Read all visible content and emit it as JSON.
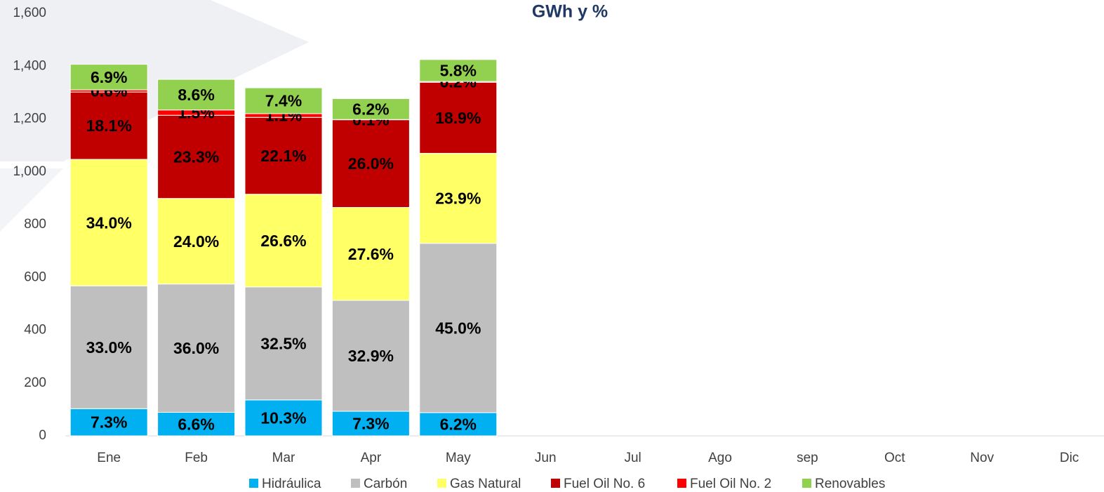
{
  "chart_data": {
    "type": "stacked_bar",
    "title": "GWh y %",
    "categories": [
      "Ene",
      "Feb",
      "Mar",
      "Apr",
      "May",
      "Jun",
      "Jul",
      "Ago",
      "sep",
      "Oct",
      "Nov",
      "Dic"
    ],
    "series": [
      {
        "name": "Hidráulica",
        "color": "#00b0f0",
        "values": [
          103,
          89,
          136,
          93,
          88,
          null,
          null,
          null,
          null,
          null,
          null,
          null
        ],
        "labels": [
          "7.3%",
          "6.6%",
          "10.3%",
          "7.3%",
          "6.2%",
          null,
          null,
          null,
          null,
          null,
          null,
          null
        ]
      },
      {
        "name": "Carbón",
        "color": "#bfbfbf",
        "values": [
          465,
          486,
          428,
          420,
          641,
          null,
          null,
          null,
          null,
          null,
          null,
          null
        ],
        "labels": [
          "33.0%",
          "36.0%",
          "32.5%",
          "32.9%",
          "45.0%",
          null,
          null,
          null,
          null,
          null,
          null,
          null
        ]
      },
      {
        "name": "Gas Natural",
        "color": "#ffff66",
        "values": [
          479,
          324,
          351,
          352,
          341,
          null,
          null,
          null,
          null,
          null,
          null,
          null
        ],
        "labels": [
          "34.0%",
          "24.0%",
          "26.6%",
          "27.6%",
          "23.9%",
          null,
          null,
          null,
          null,
          null,
          null,
          null
        ]
      },
      {
        "name": "Fuel Oil No. 6",
        "color": "#c00000",
        "values": [
          255,
          315,
          291,
          332,
          269,
          null,
          null,
          null,
          null,
          null,
          null,
          null
        ],
        "labels": [
          "18.1%",
          "23.3%",
          "22.1%",
          "26.0%",
          "18.9%",
          null,
          null,
          null,
          null,
          null,
          null,
          null
        ]
      },
      {
        "name": "Fuel Oil No. 2",
        "color": "#ff0000",
        "values": [
          8,
          20,
          14,
          1,
          3,
          null,
          null,
          null,
          null,
          null,
          null,
          null
        ],
        "labels": [
          "0.6%",
          "1.5%",
          "1.1%",
          "0.1%",
          "0.2%",
          null,
          null,
          null,
          null,
          null,
          null,
          null
        ]
      },
      {
        "name": "Renovables",
        "color": "#92d050",
        "values": [
          97,
          116,
          98,
          79,
          83,
          null,
          null,
          null,
          null,
          null,
          null,
          null
        ],
        "labels": [
          "6.9%",
          "8.6%",
          "7.4%",
          "6.2%",
          "5.8%",
          null,
          null,
          null,
          null,
          null,
          null,
          null
        ]
      }
    ],
    "ylim": [
      0,
      1600
    ],
    "yticks": [
      0,
      200,
      400,
      600,
      800,
      {
        "value": 1000,
        "label": "1,000"
      },
      {
        "value": 1200,
        "label": "1,200"
      },
      {
        "value": 1400,
        "label": "1,400"
      },
      {
        "value": 1600,
        "label": "1,600"
      }
    ],
    "grid": false
  }
}
